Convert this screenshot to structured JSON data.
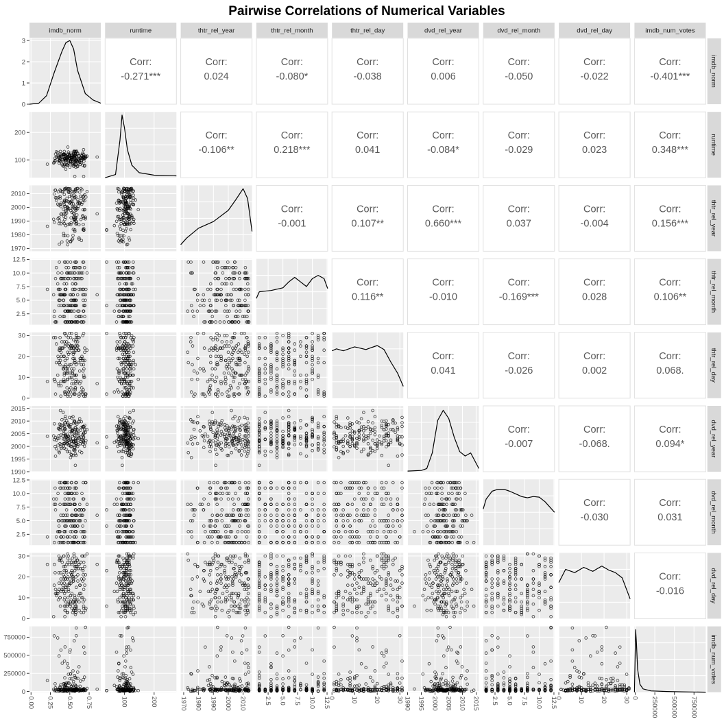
{
  "chart_data": {
    "type": "pairs-matrix",
    "title": "Pairwise Correlations of Numerical Variables",
    "variables": [
      "imdb_norm",
      "runtime",
      "thtr_rel_year",
      "thtr_rel_month",
      "thtr_rel_day",
      "dvd_rel_year",
      "dvd_rel_month",
      "dvd_rel_day",
      "imdb_num_votes"
    ],
    "corr_label": "Corr:",
    "correlations": [
      {
        "row": "runtime",
        "col": "imdb_norm",
        "value": "-0.271***"
      },
      {
        "row": "thtr_rel_year",
        "col": "imdb_norm",
        "value": "0.024"
      },
      {
        "row": "thtr_rel_month",
        "col": "imdb_norm",
        "value": "-0.080*"
      },
      {
        "row": "thtr_rel_day",
        "col": "imdb_norm",
        "value": "-0.038"
      },
      {
        "row": "dvd_rel_year",
        "col": "imdb_norm",
        "value": "0.006"
      },
      {
        "row": "dvd_rel_month",
        "col": "imdb_norm",
        "value": "-0.050"
      },
      {
        "row": "dvd_rel_day",
        "col": "imdb_norm",
        "value": "-0.022"
      },
      {
        "row": "imdb_num_votes",
        "col": "imdb_norm",
        "value": "-0.401***"
      },
      {
        "row": "thtr_rel_year",
        "col": "runtime",
        "value": "-0.106**"
      },
      {
        "row": "thtr_rel_month",
        "col": "runtime",
        "value": "0.218***"
      },
      {
        "row": "thtr_rel_day",
        "col": "runtime",
        "value": "0.041"
      },
      {
        "row": "dvd_rel_year",
        "col": "runtime",
        "value": "-0.084*"
      },
      {
        "row": "dvd_rel_month",
        "col": "runtime",
        "value": "-0.029"
      },
      {
        "row": "dvd_rel_day",
        "col": "runtime",
        "value": "0.023"
      },
      {
        "row": "imdb_num_votes",
        "col": "runtime",
        "value": "0.348***"
      },
      {
        "row": "thtr_rel_month",
        "col": "thtr_rel_year",
        "value": "-0.001"
      },
      {
        "row": "thtr_rel_day",
        "col": "thtr_rel_year",
        "value": "0.107**"
      },
      {
        "row": "dvd_rel_year",
        "col": "thtr_rel_year",
        "value": "0.660***"
      },
      {
        "row": "dvd_rel_month",
        "col": "thtr_rel_year",
        "value": "0.037"
      },
      {
        "row": "dvd_rel_day",
        "col": "thtr_rel_year",
        "value": "-0.004"
      },
      {
        "row": "imdb_num_votes",
        "col": "thtr_rel_year",
        "value": "0.156***"
      },
      {
        "row": "thtr_rel_day",
        "col": "thtr_rel_month",
        "value": "0.116**"
      },
      {
        "row": "dvd_rel_year",
        "col": "thtr_rel_month",
        "value": "-0.010"
      },
      {
        "row": "dvd_rel_month",
        "col": "thtr_rel_month",
        "value": "-0.169***"
      },
      {
        "row": "dvd_rel_day",
        "col": "thtr_rel_month",
        "value": "0.028"
      },
      {
        "row": "imdb_num_votes",
        "col": "thtr_rel_month",
        "value": "0.106**"
      },
      {
        "row": "dvd_rel_year",
        "col": "thtr_rel_day",
        "value": "0.041"
      },
      {
        "row": "dvd_rel_month",
        "col": "thtr_rel_day",
        "value": "-0.026"
      },
      {
        "row": "dvd_rel_day",
        "col": "thtr_rel_day",
        "value": "0.002"
      },
      {
        "row": "imdb_num_votes",
        "col": "thtr_rel_day",
        "value": "0.068."
      },
      {
        "row": "dvd_rel_month",
        "col": "dvd_rel_year",
        "value": "-0.007"
      },
      {
        "row": "dvd_rel_day",
        "col": "dvd_rel_year",
        "value": "-0.068."
      },
      {
        "row": "imdb_num_votes",
        "col": "dvd_rel_year",
        "value": "0.094*"
      },
      {
        "row": "dvd_rel_day",
        "col": "dvd_rel_month",
        "value": "-0.030"
      },
      {
        "row": "imdb_num_votes",
        "col": "dvd_rel_month",
        "value": "0.031"
      },
      {
        "row": "imdb_num_votes",
        "col": "dvd_rel_day",
        "value": "-0.016"
      }
    ],
    "axes": {
      "imdb_norm": {
        "range": [
          -0.02,
          0.9
        ],
        "ticks": [
          0.0,
          0.25,
          0.5,
          0.75
        ],
        "tick_labels": [
          "0.00",
          "0.25",
          "0.50",
          "0.75"
        ]
      },
      "runtime": {
        "range": [
          35,
          275
        ],
        "ticks": [
          100,
          200
        ],
        "tick_labels": [
          "100",
          "200"
        ]
      },
      "thtr_rel_year": {
        "range": [
          1968,
          2016
        ],
        "ticks": [
          1970,
          1980,
          1990,
          2000,
          2010
        ],
        "tick_labels": [
          "1970",
          "1980",
          "1990",
          "2000",
          "2010"
        ]
      },
      "thtr_rel_month": {
        "range": [
          0.5,
          12.6
        ],
        "ticks": [
          2.5,
          5.0,
          7.5,
          10.0,
          12.5
        ],
        "tick_labels": [
          "2.5",
          "5.0",
          "7.5",
          "10.0",
          "12.5"
        ]
      },
      "thtr_rel_day": {
        "range": [
          0,
          31.5
        ],
        "ticks": [
          0,
          10,
          20,
          30
        ],
        "tick_labels": [
          "0",
          "10",
          "20",
          "30"
        ]
      },
      "dvd_rel_year": {
        "range": [
          1990,
          2016
        ],
        "ticks": [
          1990,
          1995,
          2000,
          2005,
          2010,
          2015
        ],
        "tick_labels": [
          "1990",
          "1995",
          "2000",
          "2005",
          "2010",
          "2015"
        ]
      },
      "dvd_rel_month": {
        "range": [
          0.5,
          12.6
        ],
        "ticks": [
          2.5,
          5.0,
          7.5,
          10.0,
          12.5
        ],
        "tick_labels": [
          "2.5",
          "5.0",
          "7.5",
          "10.0",
          "12.5"
        ]
      },
      "dvd_rel_day": {
        "range": [
          0,
          31.5
        ],
        "ticks": [
          0,
          10,
          20,
          30
        ],
        "tick_labels": [
          "0",
          "10",
          "20",
          "30"
        ]
      },
      "imdb_num_votes": {
        "range": [
          -10000,
          900000
        ],
        "ticks": [
          0,
          250000,
          500000,
          750000
        ],
        "tick_labels": [
          "0",
          "250000",
          "500000",
          "750000"
        ]
      }
    },
    "diagonal_density": {
      "imdb_norm": {
        "x": [
          -0.02,
          0.1,
          0.2,
          0.3,
          0.4,
          0.45,
          0.5,
          0.55,
          0.6,
          0.7,
          0.8,
          0.9
        ],
        "y": [
          0,
          0.05,
          0.4,
          1.5,
          2.5,
          2.9,
          3.0,
          2.6,
          1.6,
          0.5,
          0.2,
          0.05
        ],
        "ylim": [
          0,
          3.1
        ],
        "yticks": [
          0,
          1,
          2,
          3
        ]
      },
      "runtime": {
        "x": [
          35,
          70,
          85,
          92,
          100,
          110,
          125,
          150,
          200,
          275
        ],
        "y": [
          0,
          0.05,
          0.6,
          1.0,
          0.8,
          0.45,
          0.2,
          0.08,
          0.04,
          0.03
        ],
        "ylim": [
          0,
          1.05
        ]
      },
      "thtr_rel_year": {
        "x": [
          1968,
          1972,
          1980,
          1990,
          2000,
          2005,
          2010,
          2013,
          2016
        ],
        "y": [
          0.1,
          0.2,
          0.35,
          0.45,
          0.62,
          0.78,
          0.95,
          0.8,
          0.3
        ],
        "ylim": [
          0,
          1.0
        ]
      },
      "thtr_rel_month": {
        "x": [
          0.5,
          1,
          3,
          5,
          6,
          7,
          8,
          9,
          10,
          11,
          12,
          12.6
        ],
        "y": [
          0.4,
          0.5,
          0.52,
          0.56,
          0.65,
          0.72,
          0.65,
          0.58,
          0.7,
          0.75,
          0.7,
          0.55
        ],
        "ylim": [
          0,
          1.0
        ]
      },
      "thtr_rel_day": {
        "x": [
          0,
          2,
          5,
          10,
          15,
          20,
          23,
          26,
          29,
          31.5
        ],
        "y": [
          0.72,
          0.75,
          0.72,
          0.78,
          0.74,
          0.8,
          0.74,
          0.55,
          0.38,
          0.18
        ],
        "ylim": [
          0,
          1.0
        ]
      },
      "dvd_rel_year": {
        "x": [
          1990,
          1995,
          1997,
          1999,
          2001,
          2003,
          2005,
          2007,
          2009,
          2011,
          2013,
          2016
        ],
        "y": [
          0.01,
          0.02,
          0.05,
          0.3,
          0.82,
          0.98,
          0.85,
          0.55,
          0.32,
          0.25,
          0.3,
          0.05
        ],
        "ylim": [
          0,
          1.05
        ]
      },
      "dvd_rel_month": {
        "x": [
          0.5,
          1,
          2,
          3,
          4,
          5,
          6,
          7,
          8,
          9,
          10,
          11,
          12.6
        ],
        "y": [
          0.55,
          0.7,
          0.82,
          0.85,
          0.85,
          0.82,
          0.78,
          0.74,
          0.72,
          0.74,
          0.73,
          0.66,
          0.5
        ],
        "ylim": [
          0,
          1.0
        ]
      },
      "dvd_rel_day": {
        "x": [
          0,
          3,
          7,
          11,
          15,
          19,
          22,
          25,
          28,
          31.5
        ],
        "y": [
          0.55,
          0.75,
          0.7,
          0.78,
          0.72,
          0.8,
          0.74,
          0.7,
          0.62,
          0.3
        ],
        "ylim": [
          0,
          1.0
        ]
      },
      "imdb_num_votes": {
        "x": [
          -10000,
          5000,
          15000,
          30000,
          60000,
          100000,
          200000,
          400000,
          600000,
          900000
        ],
        "y": [
          0.0,
          0.95,
          0.75,
          0.35,
          0.12,
          0.05,
          0.02,
          0.01,
          0.005,
          0.0
        ],
        "ylim": [
          0,
          1.0
        ]
      }
    },
    "scatter": {
      "marker": "open-circle",
      "points_per_panel": 180,
      "variable_summaries": {
        "imdb_norm": {
          "kind": "normal",
          "mean": 0.52,
          "sd": 0.12,
          "min": -0.02,
          "max": 0.9
        },
        "runtime": {
          "kind": "normal",
          "mean": 105,
          "sd": 18,
          "min": 40,
          "max": 267
        },
        "thtr_rel_year": {
          "kind": "skew_recent",
          "min": 1970,
          "max": 2014
        },
        "thtr_rel_month": {
          "kind": "integer",
          "min": 1,
          "max": 12
        },
        "thtr_rel_day": {
          "kind": "integer",
          "min": 1,
          "max": 31
        },
        "dvd_rel_year": {
          "kind": "normal",
          "mean": 2004,
          "sd": 4,
          "min": 1991,
          "max": 2015
        },
        "dvd_rel_month": {
          "kind": "integer",
          "min": 1,
          "max": 12
        },
        "dvd_rel_day": {
          "kind": "integer",
          "min": 1,
          "max": 31
        },
        "imdb_num_votes": {
          "kind": "heavy_tail",
          "min": 180,
          "max": 893000
        }
      }
    }
  }
}
